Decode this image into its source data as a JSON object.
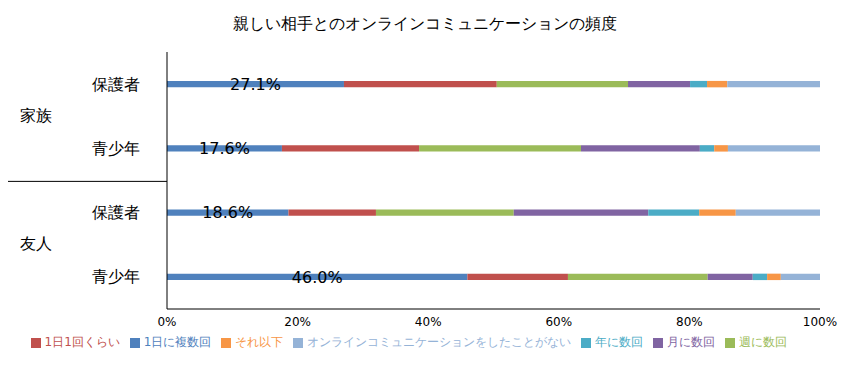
{
  "chart_data": {
    "type": "bar",
    "title": "親しい相手とのオンラインコミュニケーションの頻度",
    "orientation": "horizontal",
    "stacked": true,
    "grid": false,
    "legend": "bottom",
    "categories": [
      "保護者",
      "青少年",
      "保護者",
      "青少年"
    ],
    "groups": [
      "家族",
      "家族",
      "友人",
      "友人"
    ],
    "xlim": [
      0,
      100
    ],
    "xticks": [
      {
        "value": 0,
        "label": "0%"
      },
      {
        "value": 20,
        "label": "20%"
      },
      {
        "value": 40,
        "label": "40%"
      },
      {
        "value": 60,
        "label": "60%"
      },
      {
        "value": 80,
        "label": "80%"
      },
      {
        "value": 100,
        "label": "100%"
      }
    ],
    "series": [
      {
        "name": "1日に複数回",
        "color": "#4F81BD",
        "values": [
          27.1,
          17.6,
          18.6,
          46.0
        ],
        "data_labels": true,
        "value_labels": [
          "27.1%",
          "17.6%",
          "18.6%",
          "46.0%"
        ]
      },
      {
        "name": "1日1回くらい",
        "color": "#C0504D",
        "values": [
          23.4,
          21.0,
          13.4,
          15.4
        ]
      },
      {
        "name": "週に数回",
        "color": "#9BBB59",
        "values": [
          20.1,
          24.8,
          21.1,
          21.4
        ]
      },
      {
        "name": "月に数回",
        "color": "#8064A2",
        "values": [
          9.5,
          18.2,
          20.6,
          6.9
        ]
      },
      {
        "name": "年に数回",
        "color": "#4BACC6",
        "values": [
          2.6,
          2.2,
          7.8,
          2.2
        ]
      },
      {
        "name": "それ以下",
        "color": "#F79646",
        "values": [
          3.1,
          2.1,
          5.6,
          2.1
        ]
      },
      {
        "name": "オンラインコミュニケーションをしたことがない",
        "color": "#95B3D7",
        "values": [
          14.2,
          14.1,
          12.9,
          6.0
        ]
      }
    ]
  }
}
